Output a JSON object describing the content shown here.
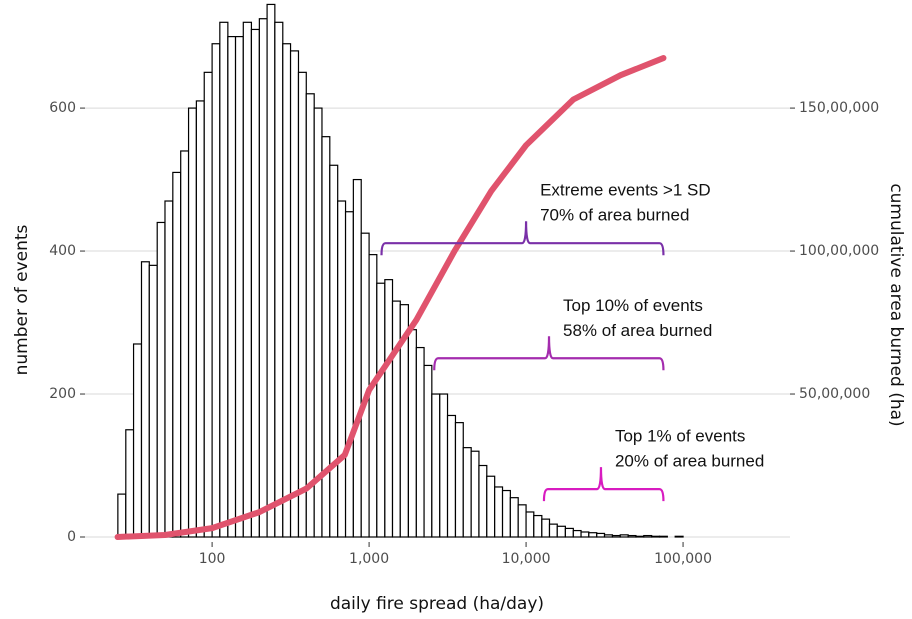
{
  "chart_data": {
    "type": "histogram",
    "xlabel": "daily fire spread (ha/day)",
    "ylabel": "number of events",
    "y2label": "cumulative area burned (ha)",
    "log_x": true,
    "grid": true,
    "xlim": [
      15.5,
      480000
    ],
    "ylim": [
      0,
      740
    ],
    "y2lim": [
      0,
      185000000
    ],
    "xticks": [
      100,
      {
        "value": 1000,
        "label": "1,000"
      },
      {
        "value": 10000,
        "label": "10,000"
      },
      {
        "value": 100000,
        "label": "100,000"
      }
    ],
    "yticks": [
      0,
      200,
      400,
      600
    ],
    "y2ticks": [
      {
        "value": 50000000,
        "label": "50,00,000"
      },
      {
        "value": 100000000,
        "label": "100,00,000"
      },
      {
        "value": 150000000,
        "label": "150,00,000"
      }
    ],
    "color": "#ffffff",
    "edgecolor": "#000000",
    "bins": [
      25.1,
      28.2,
      31.6,
      35.5,
      39.8,
      44.7,
      50.1,
      56.2,
      63.1,
      70.8,
      79.4,
      89.1,
      100,
      112,
      126,
      141,
      158,
      178,
      200,
      224,
      251,
      282,
      316,
      355,
      398,
      447,
      501,
      562,
      631,
      708,
      794,
      891,
      1000,
      1120,
      1260,
      1410,
      1580,
      1780,
      2000,
      2240,
      2510,
      2820,
      3160,
      3550,
      3980,
      4470,
      5010,
      5620,
      6310,
      7080,
      7940,
      8910,
      10000,
      11200,
      12600,
      14100,
      15800,
      17800,
      20000,
      22400,
      25100,
      28200,
      31600,
      35500,
      39800,
      44700,
      50100,
      56200,
      63100,
      70800,
      79400,
      89100,
      100000,
      112000,
      126000,
      141000,
      158000,
      178000,
      200000,
      224000,
      251000,
      282000,
      316000
    ],
    "values": [
      60,
      150,
      270,
      385,
      380,
      440,
      470,
      510,
      540,
      600,
      610,
      650,
      690,
      720,
      700,
      700,
      720,
      710,
      725,
      745,
      720,
      690,
      680,
      650,
      620,
      600,
      560,
      520,
      470,
      455,
      500,
      425,
      395,
      355,
      360,
      330,
      325,
      290,
      265,
      240,
      200,
      200,
      170,
      160,
      125,
      120,
      100,
      85,
      70,
      65,
      55,
      45,
      35,
      30,
      25,
      18,
      15,
      12,
      9,
      7,
      6,
      5,
      3,
      2,
      3,
      2,
      1,
      2,
      1,
      1,
      0,
      1,
      0,
      0,
      0,
      0,
      0,
      0,
      0,
      0,
      0,
      0
    ],
    "line": {
      "axis": "y2",
      "color": "#e0536d",
      "x": [
        25,
        50,
        100,
        200,
        400,
        700,
        1000,
        2000,
        3500,
        6000,
        10000,
        20000,
        40000,
        75000
      ],
      "values": [
        0,
        700000,
        3100000,
        8700000,
        17000000,
        28700000,
        51400000,
        75900000,
        100000000,
        121000000,
        137000000,
        153000000,
        161500000,
        167500000
      ]
    },
    "annotations": [
      {
        "lines": [
          "Extreme events >1 SD",
          "70% of area burned"
        ],
        "color": "#7a30a8",
        "x_start": 1200,
        "x_end": 75000,
        "x_peak": 10000,
        "y": 411
      },
      {
        "lines": [
          "Top 10% of events",
          "58% of area burned"
        ],
        "color": "#a42cae",
        "x_start": 2600,
        "x_end": 75000,
        "x_peak": 14000,
        "y": 250
      },
      {
        "lines": [
          "Top 1% of events",
          "20% of area burned"
        ],
        "color": "#d81bc0",
        "x_start": 13000,
        "x_end": 75000,
        "x_peak": 30000,
        "y": 67
      }
    ]
  }
}
